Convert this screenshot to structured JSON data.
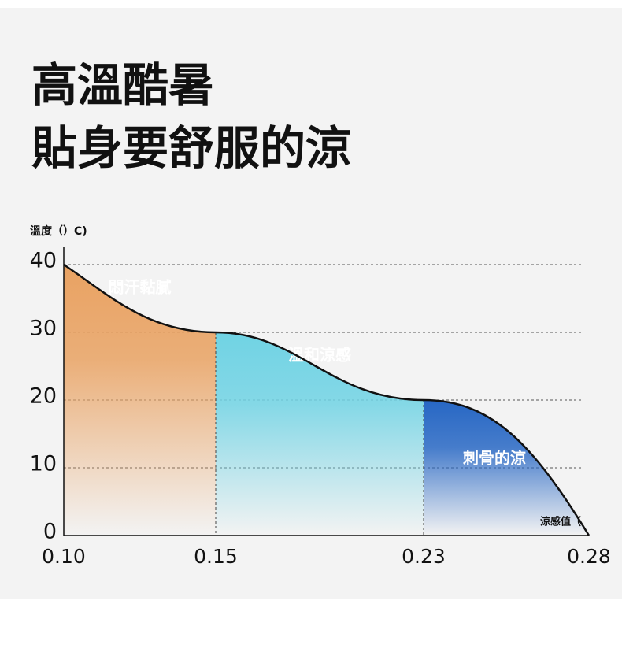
{
  "chart_data": {
    "type": "area",
    "title_lines": [
      "高溫酷暑",
      "貼身要舒服的涼"
    ],
    "ylabel": "溫度（）C)",
    "xlabel": "涼感值（",
    "x": [
      0.1,
      0.15,
      0.23,
      0.28
    ],
    "values": [
      40,
      30,
      20,
      0
    ],
    "ylim": [
      0,
      40
    ],
    "yticks": [
      0,
      10,
      20,
      30,
      40
    ],
    "xticks": [
      {
        "value": 0.1,
        "label": "0.10"
      },
      0.15,
      0.23,
      0.28
    ],
    "grid": true,
    "line_color": "#111111",
    "regions": [
      {
        "label": "悶汗黏膩",
        "color": "#e9a262"
      },
      {
        "label": "溫和涼感",
        "color": "#70d3e4"
      },
      {
        "label": "刺骨的涼",
        "color": "#2767c4"
      }
    ]
  }
}
